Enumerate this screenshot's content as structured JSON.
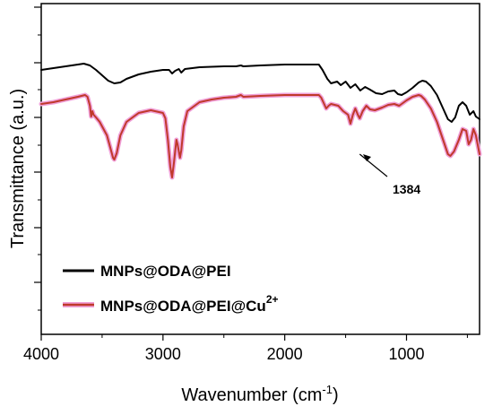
{
  "chart_data": {
    "type": "line",
    "title": "",
    "xlabel_main": "Wavenumber (cm",
    "xlabel_sup": "-1",
    "xlabel_tail": ")",
    "ylabel": "Transmittance (a.u.)",
    "xlim": [
      4000,
      400
    ],
    "x_reversed": true,
    "y_tick_labels_shown": false,
    "xticks": [
      4000,
      3000,
      2000,
      1000
    ],
    "xtick_labels": [
      "4000",
      "3000",
      "2000",
      "1000"
    ],
    "legend_position": "bottom-left",
    "annotation": {
      "text": "1384",
      "x": 1384,
      "series": 1
    },
    "series": [
      {
        "name": "MNPs@ODA@PEI",
        "name_sup": "",
        "color": "#000000",
        "halo": "",
        "points": [
          [
            4000,
            58
          ],
          [
            3900,
            60
          ],
          [
            3800,
            62
          ],
          [
            3700,
            64
          ],
          [
            3650,
            65
          ],
          [
            3600,
            63
          ],
          [
            3550,
            58
          ],
          [
            3500,
            52
          ],
          [
            3450,
            46
          ],
          [
            3400,
            43
          ],
          [
            3350,
            44
          ],
          [
            3300,
            48
          ],
          [
            3200,
            53
          ],
          [
            3100,
            56
          ],
          [
            3000,
            58
          ],
          [
            2950,
            58
          ],
          [
            2925,
            54
          ],
          [
            2900,
            57
          ],
          [
            2870,
            59
          ],
          [
            2850,
            55
          ],
          [
            2820,
            59
          ],
          [
            2700,
            61
          ],
          [
            2500,
            62
          ],
          [
            2400,
            62
          ],
          [
            2360,
            63
          ],
          [
            2340,
            62
          ],
          [
            2200,
            63
          ],
          [
            2000,
            64
          ],
          [
            1800,
            64
          ],
          [
            1720,
            64
          ],
          [
            1690,
            58
          ],
          [
            1650,
            48
          ],
          [
            1620,
            43
          ],
          [
            1570,
            45
          ],
          [
            1540,
            41
          ],
          [
            1500,
            45
          ],
          [
            1460,
            38
          ],
          [
            1420,
            42
          ],
          [
            1380,
            35
          ],
          [
            1340,
            39
          ],
          [
            1300,
            36
          ],
          [
            1250,
            32
          ],
          [
            1200,
            31
          ],
          [
            1150,
            34
          ],
          [
            1100,
            35
          ],
          [
            1070,
            31
          ],
          [
            1040,
            30
          ],
          [
            1000,
            33
          ],
          [
            950,
            38
          ],
          [
            900,
            44
          ],
          [
            870,
            46
          ],
          [
            840,
            45
          ],
          [
            800,
            40
          ],
          [
            750,
            30
          ],
          [
            700,
            15
          ],
          [
            660,
            3
          ],
          [
            630,
            0
          ],
          [
            600,
            5
          ],
          [
            570,
            18
          ],
          [
            540,
            22
          ],
          [
            510,
            18
          ],
          [
            480,
            8
          ],
          [
            450,
            12
          ],
          [
            430,
            6
          ],
          [
            400,
            3
          ]
        ]
      },
      {
        "name": "MNPs@ODA@PEI@Cu",
        "name_sup": "2+",
        "color": "#c0392b",
        "halo": "#f0a0d8",
        "points": [
          [
            4000,
            20
          ],
          [
            3900,
            22
          ],
          [
            3800,
            25
          ],
          [
            3700,
            28
          ],
          [
            3640,
            30
          ],
          [
            3620,
            28
          ],
          [
            3600,
            18
          ],
          [
            3590,
            6
          ],
          [
            3580,
            12
          ],
          [
            3570,
            8
          ],
          [
            3550,
            5
          ],
          [
            3520,
            0
          ],
          [
            3500,
            -5
          ],
          [
            3460,
            -15
          ],
          [
            3430,
            -30
          ],
          [
            3410,
            -40
          ],
          [
            3400,
            -42
          ],
          [
            3380,
            -35
          ],
          [
            3350,
            -15
          ],
          [
            3300,
            0
          ],
          [
            3200,
            10
          ],
          [
            3100,
            13
          ],
          [
            3000,
            10
          ],
          [
            2980,
            4
          ],
          [
            2960,
            -20
          ],
          [
            2940,
            -50
          ],
          [
            2925,
            -62
          ],
          [
            2910,
            -45
          ],
          [
            2890,
            -20
          ],
          [
            2880,
            -25
          ],
          [
            2860,
            -40
          ],
          [
            2850,
            -32
          ],
          [
            2830,
            -5
          ],
          [
            2800,
            12
          ],
          [
            2700,
            22
          ],
          [
            2600,
            25
          ],
          [
            2500,
            27
          ],
          [
            2400,
            28
          ],
          [
            2360,
            30
          ],
          [
            2340,
            28
          ],
          [
            2200,
            29
          ],
          [
            2000,
            30
          ],
          [
            1800,
            30
          ],
          [
            1720,
            30
          ],
          [
            1700,
            27
          ],
          [
            1660,
            15
          ],
          [
            1640,
            18
          ],
          [
            1620,
            20
          ],
          [
            1560,
            18
          ],
          [
            1520,
            12
          ],
          [
            1480,
            8
          ],
          [
            1460,
            -2
          ],
          [
            1440,
            8
          ],
          [
            1420,
            15
          ],
          [
            1400,
            8
          ],
          [
            1384,
            4
          ],
          [
            1360,
            12
          ],
          [
            1330,
            18
          ],
          [
            1300,
            14
          ],
          [
            1260,
            13
          ],
          [
            1200,
            16
          ],
          [
            1150,
            19
          ],
          [
            1100,
            20
          ],
          [
            1060,
            18
          ],
          [
            1020,
            22
          ],
          [
            1000,
            24
          ],
          [
            950,
            28
          ],
          [
            900,
            30
          ],
          [
            880,
            29
          ],
          [
            850,
            25
          ],
          [
            800,
            15
          ],
          [
            750,
            0
          ],
          [
            700,
            -20
          ],
          [
            660,
            -36
          ],
          [
            640,
            -38
          ],
          [
            610,
            -33
          ],
          [
            570,
            -20
          ],
          [
            540,
            -8
          ],
          [
            510,
            -10
          ],
          [
            490,
            -25
          ],
          [
            470,
            -20
          ],
          [
            450,
            -8
          ],
          [
            430,
            -15
          ],
          [
            400,
            -36
          ]
        ]
      }
    ]
  }
}
